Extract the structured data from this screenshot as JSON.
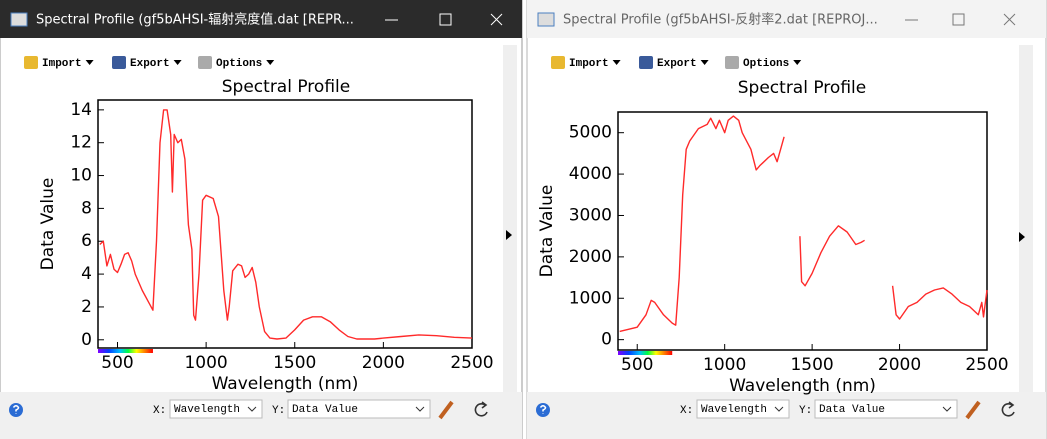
{
  "windows": [
    {
      "title": "Spectral Profile (gf5bAHSI-辐射亮度值.dat [REPR...",
      "toolbar": [
        "Import",
        "Export",
        "Options"
      ],
      "chart_data": {
        "type": "line",
        "title": "Spectral Profile",
        "x_label": "Wavelength (nm)",
        "y_label": "Data Value",
        "x": [
          400,
          420,
          440,
          460,
          480,
          500,
          520,
          540,
          560,
          580,
          600,
          640,
          680,
          700,
          720,
          740,
          760,
          780,
          800,
          810,
          820,
          840,
          860,
          880,
          900,
          920,
          930,
          940,
          960,
          980,
          1000,
          1040,
          1070,
          1100,
          1120,
          1130,
          1150,
          1180,
          1200,
          1220,
          1240,
          1260,
          1280,
          1300,
          1330,
          1360,
          1400,
          1450,
          1500,
          1550,
          1600,
          1650,
          1700,
          1750,
          1800,
          1850,
          1950,
          2000,
          2100,
          2200,
          2300,
          2400,
          2500
        ],
        "series": [
          {
            "color": "#ff2a2a",
            "values": [
              5.8,
              6.0,
              4.5,
              5.2,
              4.3,
              4.1,
              4.6,
              5.2,
              5.3,
              4.8,
              4.0,
              3.0,
              2.2,
              1.8,
              6.0,
              12.0,
              14.0,
              14.0,
              12.5,
              9.0,
              12.5,
              12.0,
              12.2,
              11.0,
              7.0,
              5.5,
              1.5,
              1.2,
              4.0,
              8.5,
              8.8,
              8.6,
              7.5,
              3.0,
              1.2,
              2.0,
              4.2,
              4.6,
              4.5,
              3.8,
              4.0,
              4.4,
              3.5,
              2.0,
              0.5,
              0.1,
              0.05,
              0.1,
              0.6,
              1.2,
              1.4,
              1.4,
              1.1,
              0.6,
              0.2,
              0.05,
              0.05,
              0.1,
              0.2,
              0.3,
              0.25,
              0.15,
              0.1
            ]
          }
        ],
        "xlim": [
          390,
          2500
        ],
        "ylim": [
          -0.5,
          14.6
        ],
        "xticks": [
          500,
          1000,
          1500,
          2000,
          2500
        ],
        "yticks": [
          0,
          2,
          4,
          6,
          8,
          10,
          12,
          14
        ]
      },
      "x_selector": {
        "label": "X:",
        "value": "Wavelength"
      },
      "y_selector": {
        "label": "Y:",
        "value": "Data Value"
      }
    },
    {
      "title": "Spectral Profile (gf5bAHSI-反射率2.dat [REPROJ...",
      "toolbar": [
        "Import",
        "Export",
        "Options"
      ],
      "chart_data": {
        "type": "line",
        "title": "Spectral Profile",
        "x_label": "Wavelength (nm)",
        "y_label": "Data Value",
        "x": [
          400,
          450,
          500,
          550,
          580,
          600,
          650,
          700,
          720,
          740,
          760,
          780,
          800,
          850,
          900,
          920,
          950,
          970,
          1000,
          1020,
          1050,
          1080,
          1100,
          1150,
          1180,
          1200,
          1250,
          1280,
          1300,
          1320,
          1340,
          1380,
          1430,
          1440,
          1460,
          1500,
          1550,
          1600,
          1650,
          1700,
          1750,
          1780,
          1800,
          1880,
          1960,
          1980,
          2000,
          2050,
          2100,
          2150,
          2200,
          2250,
          2300,
          2350,
          2400,
          2450,
          2470,
          2480,
          2500
        ],
        "series": [
          {
            "color": "#ff2a2a",
            "values": [
              200,
              250,
              300,
              600,
              950,
              900,
              600,
              400,
              350,
              1500,
              3500,
              4600,
              4800,
              5100,
              5200,
              5350,
              5100,
              5300,
              5000,
              5300,
              5400,
              5300,
              5000,
              4600,
              4100,
              4200,
              4400,
              4500,
              4300,
              4600,
              4900,
              null,
              2500,
              1400,
              1300,
              1600,
              2100,
              2500,
              2750,
              2600,
              2300,
              2350,
              2400,
              null,
              1300,
              600,
              500,
              800,
              900,
              1100,
              1200,
              1250,
              1100,
              900,
              800,
              600,
              900,
              550,
              1200
            ]
          }
        ],
        "xlim": [
          390,
          2500
        ],
        "ylim": [
          -250,
          5500
        ],
        "xticks": [
          500,
          1000,
          1500,
          2000,
          2500
        ],
        "yticks": [
          0,
          1000,
          2000,
          3000,
          4000,
          5000
        ]
      },
      "x_selector": {
        "label": "X:",
        "value": "Wavelength"
      },
      "y_selector": {
        "label": "Y:",
        "value": "Data Value"
      }
    }
  ]
}
